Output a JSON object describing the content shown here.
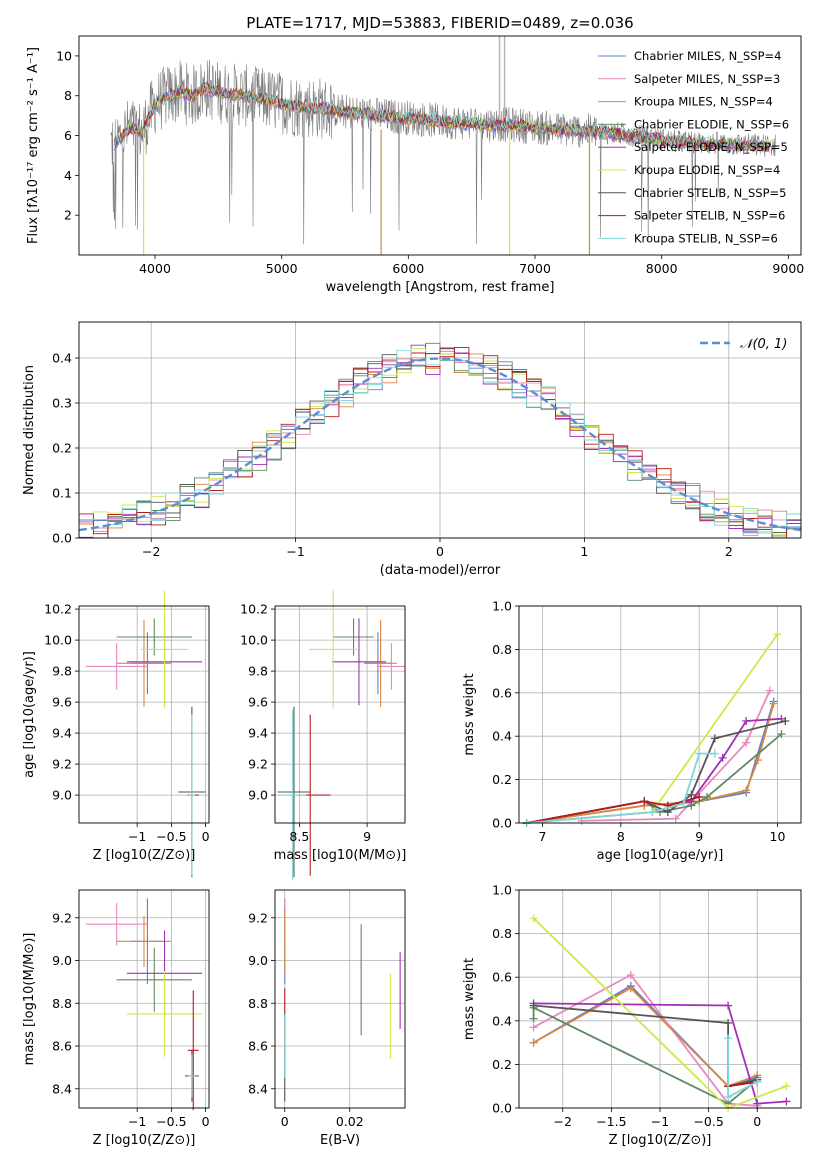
{
  "chart_data": [
    {
      "id": "spectrum",
      "type": "line",
      "title": "PLATE=1717, MJD=53883, FIBERID=0489, z=0.036",
      "xlabel": "wavelength [Angstrom, rest frame]",
      "ylabel": "Flux [fλ10⁻¹⁷ erg cm⁻² s⁻¹ A⁻¹]",
      "xlim": [
        3400,
        9100
      ],
      "ylim": [
        0,
        11
      ],
      "xticks": [
        4000,
        5000,
        6000,
        7000,
        8000,
        9000
      ],
      "yticks": [
        2,
        4,
        6,
        8,
        10
      ],
      "legend": "top-right",
      "series": [
        {
          "name": "Chabrier MILES, N_SSP=4",
          "color": "#5b7fd6"
        },
        {
          "name": "Salpeter MILES, N_SSP=3",
          "color": "#e88ac1"
        },
        {
          "name": "Kroupa MILES, N_SSP=4",
          "color": "#d98a3c"
        },
        {
          "name": "Chabrier ELODIE, N_SSP=6",
          "color": "#5f8a63"
        },
        {
          "name": "Salpeter ELODIE, N_SSP=5",
          "color": "#a32eb8"
        },
        {
          "name": "Kroupa ELODIE, N_SSP=4",
          "color": "#cde84a"
        },
        {
          "name": "Chabrier STELIB, N_SSP=5",
          "color": "#555555"
        },
        {
          "name": "Salpeter STELIB, N_SSP=6",
          "color": "#b51c1c"
        },
        {
          "name": "Kroupa STELIB, N_SSP=6",
          "color": "#7fd6d6"
        }
      ],
      "continuum": {
        "x": [
          3680,
          3800,
          3900,
          4000,
          4100,
          4200,
          4300,
          4400,
          4500,
          4700,
          4900,
          5100,
          5300,
          5500,
          5800,
          6000,
          6300,
          6600,
          6900,
          7200,
          7500,
          7800,
          8100,
          8400,
          8800
        ],
        "y": [
          5.6,
          6.4,
          6.2,
          7.6,
          8.0,
          8.2,
          8.0,
          8.4,
          8.2,
          8.0,
          7.8,
          7.5,
          7.4,
          7.2,
          7.0,
          6.9,
          6.7,
          6.6,
          6.5,
          6.3,
          6.2,
          6.0,
          5.7,
          5.6,
          5.5
        ]
      }
    },
    {
      "id": "residuals",
      "type": "area",
      "xlabel": "(data-model)/error",
      "ylabel": "Normed distribution",
      "xlim": [
        -2.5,
        2.5
      ],
      "ylim": [
        0,
        0.48
      ],
      "xticks": [
        -2,
        -1,
        0,
        1,
        2
      ],
      "yticks": [
        0.0,
        0.1,
        0.2,
        0.3,
        0.4
      ],
      "grid": true,
      "legend": "top-right",
      "legend_label": "𝒩(0, 1)",
      "gaussian": {
        "mu": 0,
        "sigma": 1,
        "color": "#5b8ed6"
      }
    },
    {
      "id": "age-vs-Z",
      "type": "scatter",
      "xlabel": "Z [log10(Z/Z⊙)]",
      "ylabel": "age  [log10(age/yr)]",
      "xlim": [
        -1.85,
        0.05
      ],
      "ylim": [
        8.82,
        10.22
      ],
      "xticks": [
        -1,
        -0.5,
        0
      ],
      "yticks": [
        9.0,
        9.2,
        9.4,
        9.6,
        9.8,
        10.0,
        10.2
      ],
      "grid": true,
      "points": [
        {
          "x": -0.85,
          "y": 9.85,
          "xerr": 0.25,
          "yerr": 0.2,
          "c": 0
        },
        {
          "x": -1.3,
          "y": 9.83,
          "xerr": 0.45,
          "yerr": 0.15,
          "c": 1
        },
        {
          "x": -0.9,
          "y": 9.85,
          "xerr": 0.4,
          "yerr": 0.28,
          "c": 2
        },
        {
          "x": -0.75,
          "y": 10.02,
          "xerr": 0.55,
          "yerr": 0.12,
          "c": 3
        },
        {
          "x": -0.6,
          "y": 9.86,
          "xerr": 0.55,
          "yerr": 0.28,
          "c": 4
        },
        {
          "x": -0.6,
          "y": 9.94,
          "xerr": 0.35,
          "yerr": 0.38,
          "c": 5
        },
        {
          "x": -0.2,
          "y": 9.02,
          "xerr": 0.2,
          "yerr": 0.55,
          "c": 6
        },
        {
          "x": -0.18,
          "y": 9.0,
          "xerr": 0.08,
          "yerr": 0.0,
          "c": 7
        },
        {
          "x": -0.2,
          "y": 9.0,
          "xerr": 0.05,
          "yerr": 0.52,
          "c": 8
        }
      ]
    },
    {
      "id": "age-vs-mass",
      "type": "scatter",
      "xlabel": "mass [log10(M/M⊙)]",
      "xlim": [
        8.32,
        9.28
      ],
      "ylim": [
        8.82,
        10.22
      ],
      "xticks": [
        8.5,
        9.0
      ],
      "yticks": [
        9.0,
        9.2,
        9.4,
        9.6,
        9.8,
        10.0,
        10.2
      ],
      "grid": true,
      "points": [
        {
          "x": 9.08,
          "y": 9.85,
          "xerr": 0.1,
          "yerr": 0.2,
          "c": 0
        },
        {
          "x": 9.18,
          "y": 9.83,
          "xerr": 0.1,
          "yerr": 0.15,
          "c": 1
        },
        {
          "x": 9.1,
          "y": 9.85,
          "xerr": 0.12,
          "yerr": 0.28,
          "c": 2
        },
        {
          "x": 8.9,
          "y": 10.02,
          "xerr": 0.15,
          "yerr": 0.12,
          "c": 3
        },
        {
          "x": 8.94,
          "y": 9.86,
          "xerr": 0.2,
          "yerr": 0.28,
          "c": 4
        },
        {
          "x": 8.75,
          "y": 9.94,
          "xerr": 0.18,
          "yerr": 0.38,
          "c": 5
        },
        {
          "x": 8.46,
          "y": 9.02,
          "xerr": 0.12,
          "yerr": 0.55,
          "c": 6
        },
        {
          "x": 8.58,
          "y": 9.0,
          "xerr": 0.15,
          "yerr": 0.52,
          "c": 7
        },
        {
          "x": 8.45,
          "y": 9.0,
          "xerr": 0.1,
          "yerr": 0.55,
          "c": 8
        }
      ]
    },
    {
      "id": "massweight-vs-age",
      "type": "line",
      "xlabel": "age  [log10(age/yr)]",
      "ylabel": "mass weight",
      "xlim": [
        6.7,
        10.3
      ],
      "ylim": [
        0,
        1
      ],
      "xticks": [
        7,
        8,
        9,
        10
      ],
      "yticks": [
        0.0,
        0.2,
        0.4,
        0.6,
        0.8,
        1.0
      ],
      "grid": true,
      "series": [
        {
          "c": 0,
          "x": [
            6.8,
            8.3,
            9.0,
            9.6,
            9.95
          ],
          "y": [
            0.0,
            0.08,
            0.1,
            0.14,
            0.56
          ]
        },
        {
          "c": 1,
          "x": [
            7.5,
            8.7,
            9.6,
            9.9
          ],
          "y": [
            0.01,
            0.02,
            0.37,
            0.61
          ]
        },
        {
          "c": 2,
          "x": [
            6.8,
            8.3,
            9.0,
            9.6,
            9.75,
            9.95
          ],
          "y": [
            0.0,
            0.08,
            0.1,
            0.15,
            0.29,
            0.55
          ]
        },
        {
          "c": 3,
          "x": [
            6.8,
            8.3,
            8.5,
            8.9,
            9.1,
            10.05
          ],
          "y": [
            0.0,
            0.1,
            0.05,
            0.08,
            0.12,
            0.41
          ]
        },
        {
          "c": 4,
          "x": [
            6.8,
            8.4,
            8.9,
            9.3,
            9.6,
            10.05
          ],
          "y": [
            0.0,
            0.05,
            0.1,
            0.3,
            0.47,
            0.48
          ]
        },
        {
          "c": 5,
          "x": [
            6.8,
            8.4,
            10.0
          ],
          "y": [
            0.0,
            0.05,
            0.87
          ]
        },
        {
          "c": 6,
          "x": [
            6.8,
            8.3,
            8.6,
            8.9,
            9.2,
            10.1
          ],
          "y": [
            0.0,
            0.1,
            0.05,
            0.13,
            0.39,
            0.47
          ]
        },
        {
          "c": 7,
          "x": [
            6.8,
            8.3,
            8.6,
            9.0
          ],
          "y": [
            0.0,
            0.1,
            0.08,
            0.12
          ]
        },
        {
          "c": 8,
          "x": [
            6.8,
            8.4,
            8.8,
            9.0,
            9.2
          ],
          "y": [
            0.0,
            0.05,
            0.09,
            0.32,
            0.32
          ]
        }
      ]
    },
    {
      "id": "mass-vs-Z",
      "type": "scatter",
      "xlabel": "Z [log10(Z/Z⊙)]",
      "ylabel": "mass [log10(M/M⊙)]",
      "xlim": [
        -1.85,
        0.05
      ],
      "ylim": [
        8.31,
        9.33
      ],
      "xticks": [
        -1,
        -0.5,
        0
      ],
      "yticks": [
        8.4,
        8.6,
        8.8,
        9.0,
        9.2
      ],
      "grid": true,
      "points": [
        {
          "x": -0.85,
          "y": 9.09,
          "xerr": 0.25,
          "yerr": 0.2,
          "c": 0
        },
        {
          "x": -1.3,
          "y": 9.17,
          "xerr": 0.45,
          "yerr": 0.1,
          "c": 1
        },
        {
          "x": -0.9,
          "y": 9.09,
          "xerr": 0.4,
          "yerr": 0.12,
          "c": 2
        },
        {
          "x": -0.75,
          "y": 8.91,
          "xerr": 0.55,
          "yerr": 0.15,
          "c": 3
        },
        {
          "x": -0.6,
          "y": 8.94,
          "xerr": 0.55,
          "yerr": 0.2,
          "c": 4
        },
        {
          "x": -0.6,
          "y": 8.75,
          "xerr": 0.55,
          "yerr": 0.2,
          "c": 5
        },
        {
          "x": -0.2,
          "y": 8.46,
          "xerr": 0.1,
          "yerr": 0.12,
          "c": 6
        },
        {
          "x": -0.18,
          "y": 8.58,
          "xerr": 0.08,
          "yerr": 0.28,
          "c": 7
        },
        {
          "x": -0.2,
          "y": 8.46,
          "xerr": 0.05,
          "yerr": 0.1,
          "c": 8
        }
      ]
    },
    {
      "id": "mass-vs-EBV",
      "type": "scatter",
      "xlabel": "E(B-V)",
      "xlim": [
        -0.003,
        0.037
      ],
      "ylim": [
        8.31,
        9.33
      ],
      "xticks": [
        0.0,
        0.02
      ],
      "yticks": [
        8.4,
        8.6,
        8.8,
        9.0,
        9.2
      ],
      "grid": true,
      "points": [
        {
          "x": 0.0,
          "y": 9.09,
          "xerr": 0,
          "yerr": 0.2,
          "c": 0
        },
        {
          "x": 0.0,
          "y": 9.17,
          "xerr": 0,
          "yerr": 0.12,
          "c": 1
        },
        {
          "x": 0.0,
          "y": 9.09,
          "xerr": 0,
          "yerr": 0.15,
          "c": 2
        },
        {
          "x": 0.0235,
          "y": 8.91,
          "xerr": 0,
          "yerr": 0.26,
          "c": 3
        },
        {
          "x": 0.0355,
          "y": 8.86,
          "xerr": 0,
          "yerr": 0.18,
          "c": 4
        },
        {
          "x": 0.0325,
          "y": 8.74,
          "xerr": 0,
          "yerr": 0.2,
          "c": 5
        },
        {
          "x": 0.0,
          "y": 8.46,
          "xerr": 0,
          "yerr": 0.12,
          "c": 6
        },
        {
          "x": 0.0,
          "y": 8.72,
          "xerr": 0,
          "yerr": 0.15,
          "c": 7
        },
        {
          "x": 0.0,
          "y": 8.6,
          "xerr": 0,
          "yerr": 0.15,
          "c": 8
        }
      ]
    },
    {
      "id": "massweight-vs-Z",
      "type": "line",
      "xlabel": "Z [log10(Z/Z⊙)]",
      "ylabel": "mass weight",
      "xlim": [
        -2.45,
        0.45
      ],
      "ylim": [
        0,
        1
      ],
      "xticks": [
        -2.0,
        -1.5,
        -1.0,
        -0.5,
        0.0
      ],
      "yticks": [
        0.0,
        0.2,
        0.4,
        0.6,
        0.8,
        1.0
      ],
      "grid": true,
      "series": [
        {
          "c": 0,
          "x": [
            -2.3,
            -1.3,
            -0.3,
            0.0
          ],
          "y": [
            0.3,
            0.56,
            0.1,
            0.14
          ]
        },
        {
          "c": 1,
          "x": [
            -2.3,
            -1.3,
            -0.3,
            0.0
          ],
          "y": [
            0.37,
            0.61,
            0.02,
            0.01
          ]
        },
        {
          "c": 2,
          "x": [
            -2.3,
            -1.3,
            -0.3,
            0.0
          ],
          "y": [
            0.3,
            0.55,
            0.1,
            0.15
          ]
        },
        {
          "c": 3,
          "x": [
            -2.3,
            -2.3,
            -0.3,
            0.0
          ],
          "y": [
            0.41,
            0.46,
            0.02,
            0.13
          ]
        },
        {
          "c": 4,
          "x": [
            -2.3,
            -0.3,
            0.0,
            0.3
          ],
          "y": [
            0.48,
            0.47,
            0.02,
            0.03
          ]
        },
        {
          "c": 5,
          "x": [
            -2.3,
            -0.3,
            0.3
          ],
          "y": [
            0.87,
            0.0,
            0.1
          ]
        },
        {
          "c": 6,
          "x": [
            -2.3,
            -0.3,
            -0.3,
            0.0
          ],
          "y": [
            0.47,
            0.39,
            0.1,
            0.13
          ]
        },
        {
          "c": 7,
          "x": [
            -0.3,
            0.0
          ],
          "y": [
            0.1,
            0.12
          ]
        },
        {
          "c": 8,
          "x": [
            -0.3,
            -0.3,
            0.0
          ],
          "y": [
            0.32,
            0.05,
            0.12
          ]
        }
      ]
    }
  ]
}
